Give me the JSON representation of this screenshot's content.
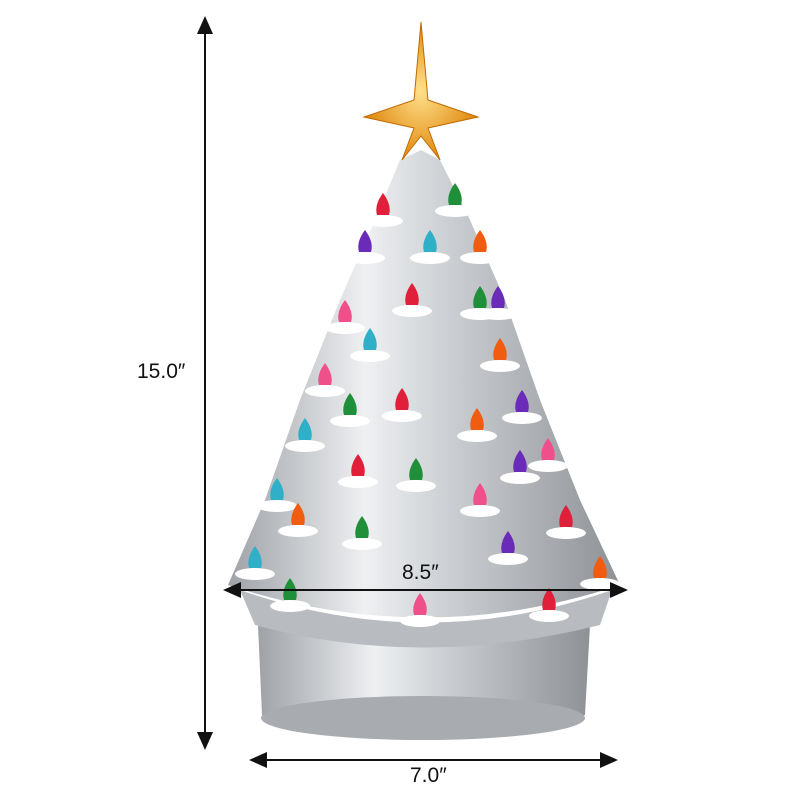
{
  "dimensions": {
    "height_label": "15.0″",
    "width_label": "8.5″",
    "base_label": "7.0″"
  },
  "colors": {
    "tree_silver": "#c9cbcf",
    "snow": "#ffffff",
    "star": "#f2a21a",
    "bulbs": [
      "#e0203a",
      "#1f8f3a",
      "#6a2bb8",
      "#2fb0c8",
      "#f05c10",
      "#f0508a"
    ]
  }
}
